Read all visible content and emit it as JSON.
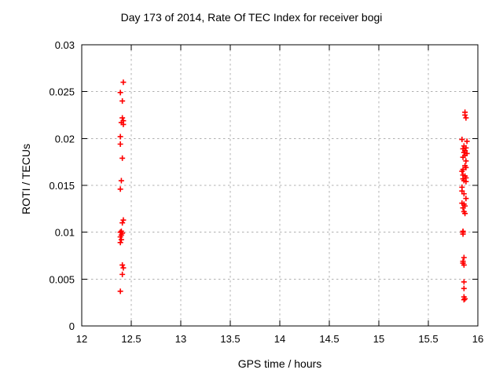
{
  "chart_data": {
    "type": "scatter",
    "title": "Day 173 of 2014, Rate Of TEC Index for receiver bogi",
    "xlabel": "GPS time / hours",
    "ylabel": "ROTI / TECUs",
    "xlim": [
      12,
      16
    ],
    "ylim": [
      0,
      0.03
    ],
    "xticks": [
      12,
      12.5,
      13,
      13.5,
      14,
      14.5,
      15,
      15.5,
      16
    ],
    "xtick_labels": [
      "12",
      "12.5",
      "13",
      "13.5",
      "14",
      "14.5",
      "15",
      "15.5",
      "16"
    ],
    "yticks": [
      0,
      0.005,
      0.01,
      0.015,
      0.02,
      0.025,
      0.03
    ],
    "ytick_labels": [
      "0",
      "0.005",
      "0.01",
      "0.015",
      "0.02",
      "0.025",
      "0.03"
    ],
    "grid": {
      "show": true,
      "style": "dashed",
      "color": "#b0b0b0"
    },
    "legend": "none",
    "marker": {
      "shape": "plus",
      "color": "#ff0000",
      "size": 7
    },
    "series": [
      {
        "points": [
          [
            12.42,
            0.026
          ],
          [
            12.39,
            0.0249
          ],
          [
            12.41,
            0.024
          ],
          [
            12.41,
            0.0222
          ],
          [
            12.42,
            0.0219
          ],
          [
            12.4,
            0.0217
          ],
          [
            12.42,
            0.0215
          ],
          [
            12.39,
            0.0202
          ],
          [
            12.39,
            0.0194
          ],
          [
            12.41,
            0.0179
          ],
          [
            12.4,
            0.0155
          ],
          [
            12.39,
            0.0146
          ],
          [
            12.42,
            0.0113
          ],
          [
            12.41,
            0.011
          ],
          [
            12.4,
            0.0101
          ],
          [
            12.39,
            0.01
          ],
          [
            12.41,
            0.0099
          ],
          [
            12.4,
            0.0097
          ],
          [
            12.39,
            0.0095
          ],
          [
            12.4,
            0.0092
          ],
          [
            12.39,
            0.0089
          ],
          [
            12.41,
            0.0065
          ],
          [
            12.42,
            0.0062
          ],
          [
            12.41,
            0.0055
          ],
          [
            12.39,
            0.0037
          ],
          [
            15.87,
            0.0228
          ],
          [
            15.87,
            0.0225
          ],
          [
            15.88,
            0.0222
          ],
          [
            15.84,
            0.0199
          ],
          [
            15.89,
            0.0197
          ],
          [
            15.86,
            0.0192
          ],
          [
            15.88,
            0.019
          ],
          [
            15.85,
            0.0189
          ],
          [
            15.87,
            0.0187
          ],
          [
            15.86,
            0.0185
          ],
          [
            15.89,
            0.0184
          ],
          [
            15.87,
            0.0182
          ],
          [
            15.85,
            0.018
          ],
          [
            15.88,
            0.0176
          ],
          [
            15.87,
            0.0171
          ],
          [
            15.88,
            0.0169
          ],
          [
            15.85,
            0.0167
          ],
          [
            15.84,
            0.0165
          ],
          [
            15.85,
            0.0161
          ],
          [
            15.87,
            0.016
          ],
          [
            15.88,
            0.0158
          ],
          [
            15.85,
            0.0157
          ],
          [
            15.86,
            0.0155
          ],
          [
            15.88,
            0.0154
          ],
          [
            15.84,
            0.0148
          ],
          [
            15.84,
            0.0144
          ],
          [
            15.86,
            0.0141
          ],
          [
            15.88,
            0.0136
          ],
          [
            15.84,
            0.0131
          ],
          [
            15.86,
            0.013
          ],
          [
            15.87,
            0.0128
          ],
          [
            15.85,
            0.0126
          ],
          [
            15.86,
            0.0122
          ],
          [
            15.87,
            0.012
          ],
          [
            15.85,
            0.0101
          ],
          [
            15.85,
            0.01
          ],
          [
            15.85,
            0.0098
          ],
          [
            15.86,
            0.0073
          ],
          [
            15.85,
            0.0069
          ],
          [
            15.85,
            0.0067
          ],
          [
            15.86,
            0.0065
          ],
          [
            15.86,
            0.0047
          ],
          [
            15.86,
            0.004
          ],
          [
            15.86,
            0.0031
          ],
          [
            15.87,
            0.0029
          ],
          [
            15.86,
            0.0028
          ]
        ]
      }
    ]
  }
}
